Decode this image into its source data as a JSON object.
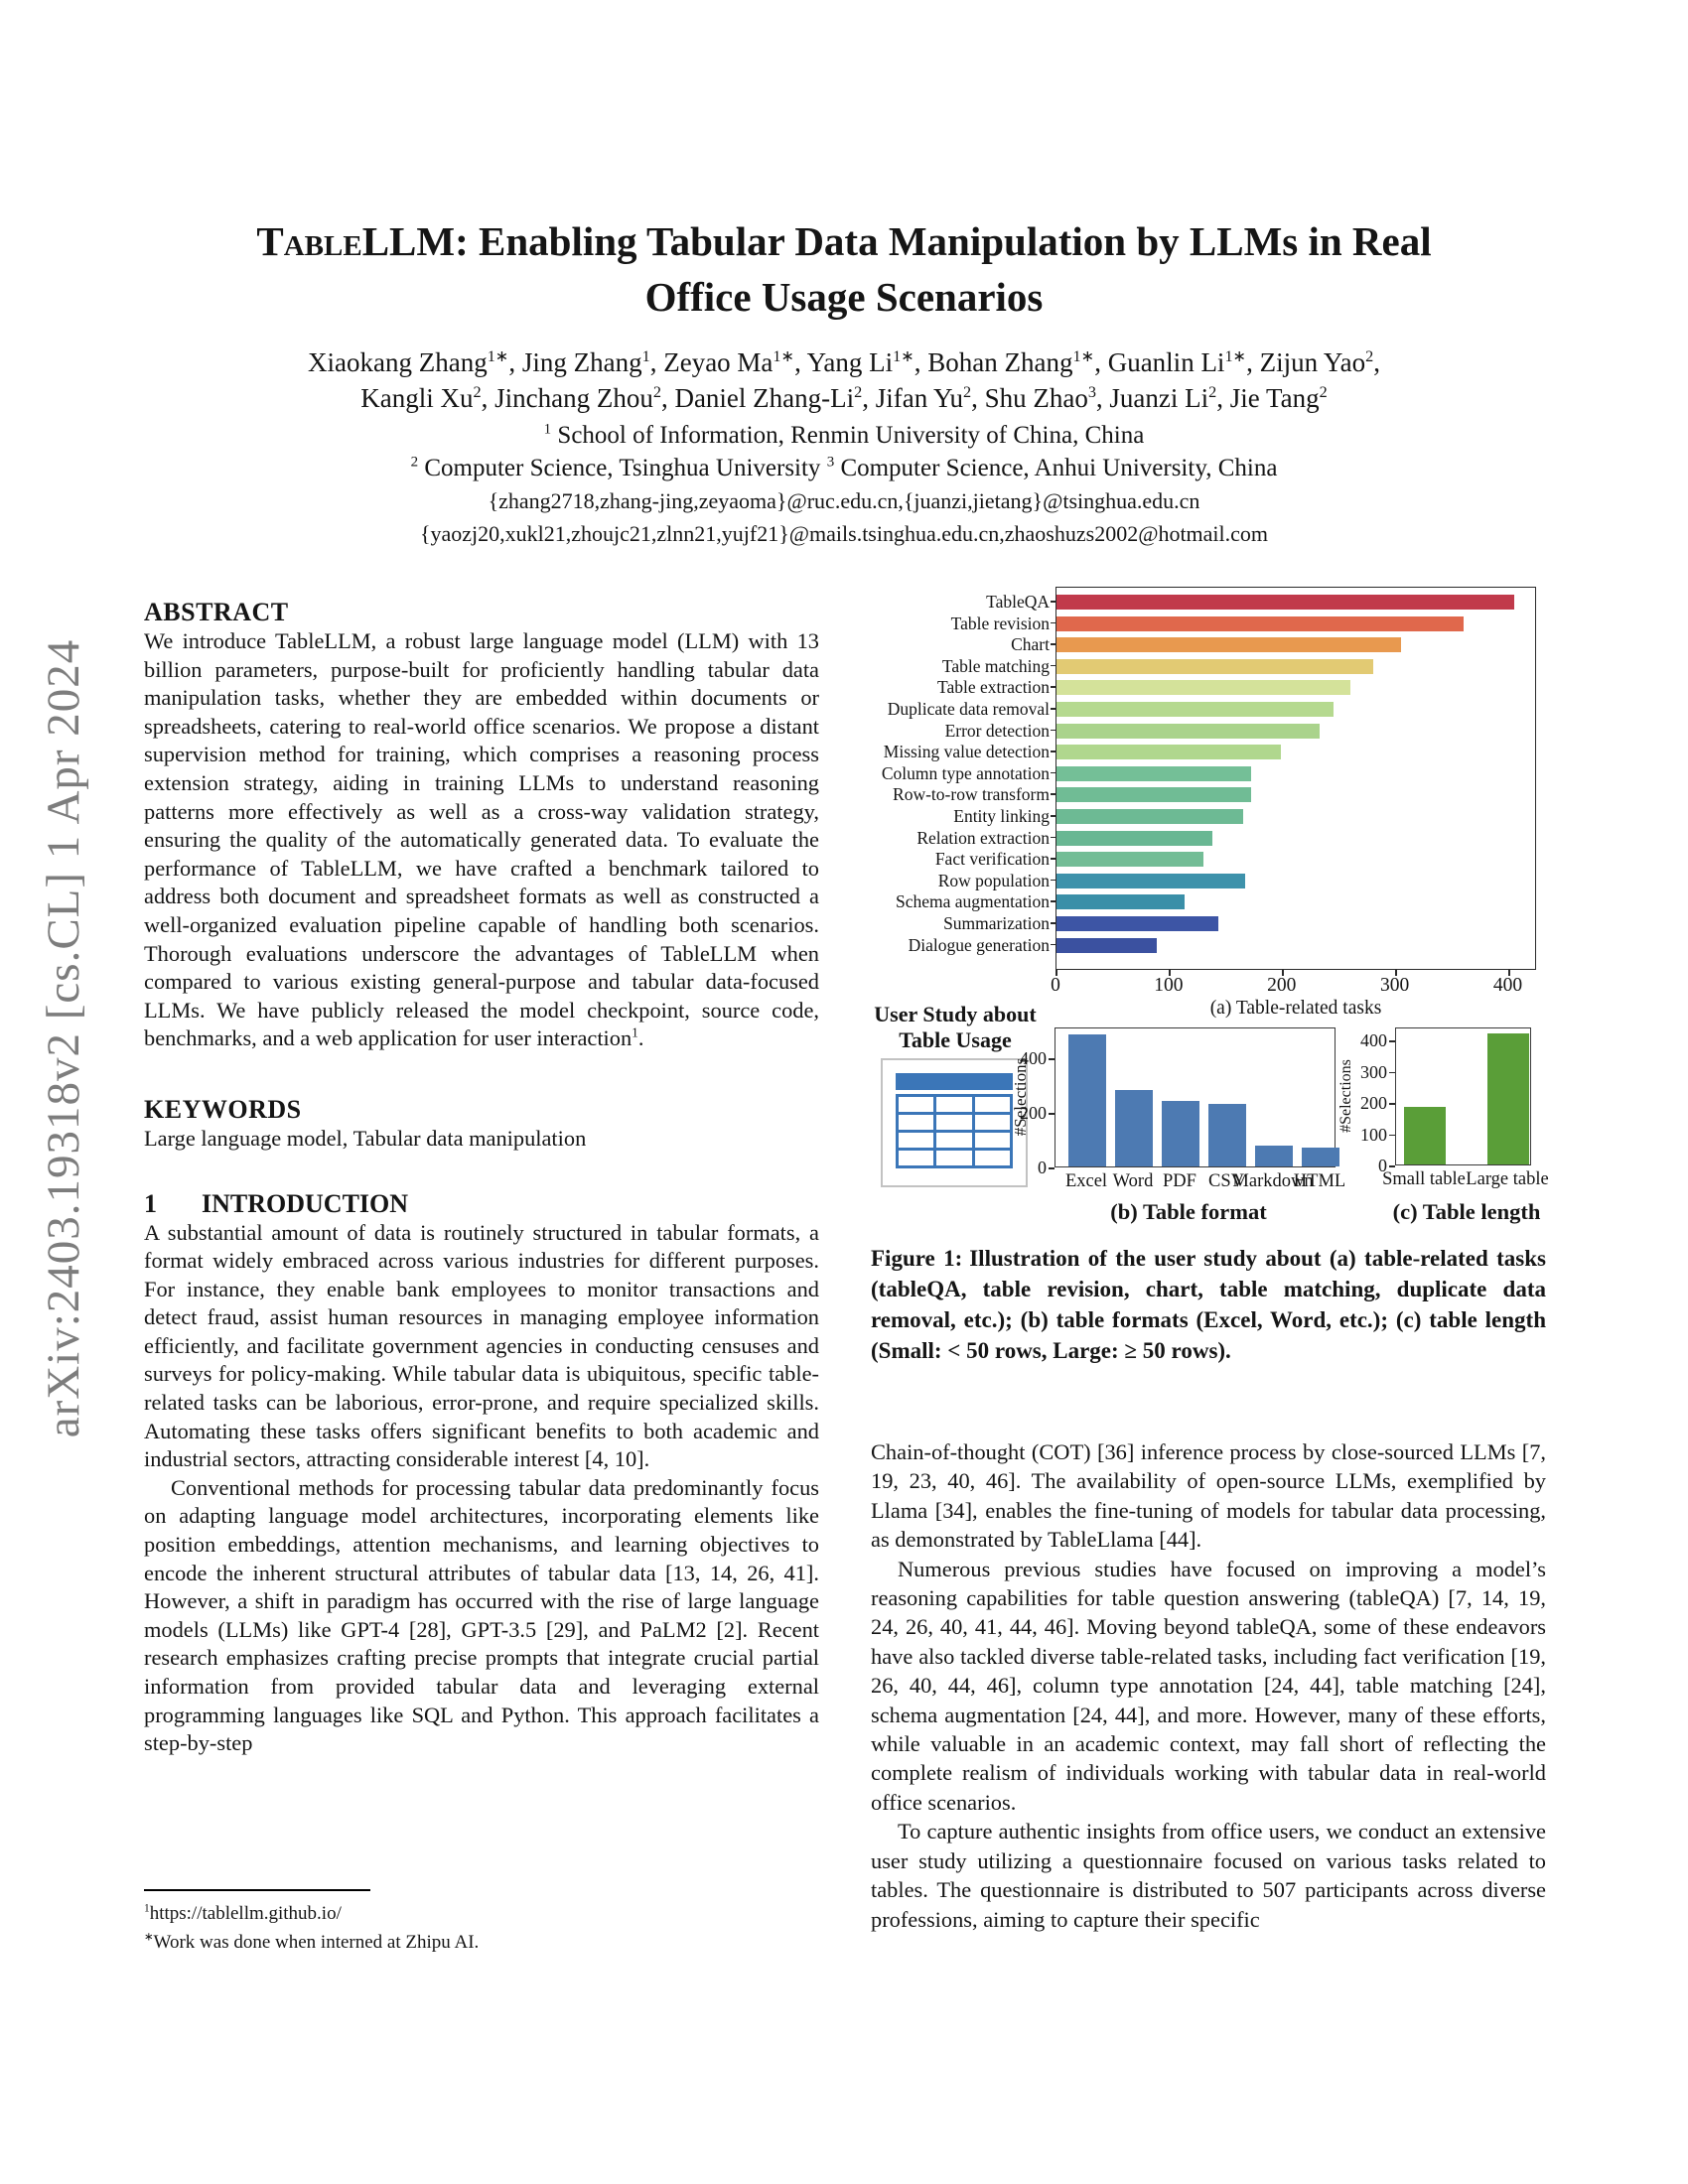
{
  "watermark": {
    "text": "arXiv:2403.19318v2  [cs.CL]  1 Apr 2024"
  },
  "header": {
    "title": {
      "sc": "Table",
      "rest": "LLM: Enabling Tabular Data Manipulation by LLMs in Real",
      "line2": "Office Usage Scenarios"
    },
    "author_lines": [
      {
        "authors": [
          {
            "name": "Xiaokang Zhang",
            "sup": "1∗"
          },
          {
            "name": "Jing Zhang",
            "sup": "1"
          },
          {
            "name": "Zeyao Ma",
            "sup": "1∗"
          },
          {
            "name": "Yang Li",
            "sup": "1∗"
          },
          {
            "name": "Bohan Zhang",
            "sup": "1∗"
          },
          {
            "name": "Guanlin Li",
            "sup": "1∗"
          },
          {
            "name": "Zijun Yao",
            "sup": "2"
          }
        ],
        "suffix": ","
      },
      {
        "authors": [
          {
            "name": "Kangli Xu",
            "sup": "2"
          },
          {
            "name": "Jinchang Zhou",
            "sup": "2"
          },
          {
            "name": "Daniel Zhang-Li",
            "sup": "2"
          },
          {
            "name": "Jifan Yu",
            "sup": "2"
          },
          {
            "name": "Shu Zhao",
            "sup": "3"
          },
          {
            "name": "Juanzi Li",
            "sup": "2"
          },
          {
            "name": "Jie Tang",
            "sup": "2"
          }
        ],
        "suffix": ""
      }
    ],
    "affiliations": [
      {
        "parts": [
          {
            "sup": "1",
            "text": " School of Information, Renmin University of China, China"
          }
        ]
      },
      {
        "parts": [
          {
            "sup": "2",
            "text": " Computer Science, Tsinghua University "
          },
          {
            "sup": "3",
            "text": " Computer Science, Anhui University, China"
          }
        ]
      }
    ],
    "emails": [
      "{zhang2718,zhang-jing,zeyaoma}@ruc.edu.cn,{juanzi,jietang}@tsinghua.edu.cn",
      "{yaozj20,xukl21,zhoujc21,zlnn21,yujf21}@mails.tsinghua.edu.cn,zhaoshuzs2002@hotmail.com"
    ]
  },
  "abstract": {
    "heading": "ABSTRACT",
    "text": "We introduce TableLLM, a robust large language model (LLM) with 13 billion parameters, purpose-built for proficiently handling tabular data manipulation tasks, whether they are embedded within documents or spreadsheets, catering to real-world office scenarios. We propose a distant supervision method for training, which comprises a reasoning process extension strategy, aiding in training LLMs to understand reasoning patterns more effectively as well as a cross-way validation strategy, ensuring the quality of the automatically generated data. To evaluate the performance of TableLLM, we have crafted a benchmark tailored to address both document and spreadsheet formats as well as constructed a well-organized evaluation pipeline capable of handling both scenarios. Thorough evaluations underscore the advantages of TableLLM when compared to various existing general-purpose and tabular data-focused LLMs. We have publicly released the model checkpoint, source code, benchmarks, and a web application for user interaction",
    "sup": "1",
    "tail": "."
  },
  "keywords": {
    "heading": "KEYWORDS",
    "text": "Large language model, Tabular data manipulation"
  },
  "introduction": {
    "number": "1",
    "heading": "INTRODUCTION",
    "paragraphs": [
      "A substantial amount of data is routinely structured in tabular formats, a format widely embraced across various industries for different purposes. For instance, they enable bank employees to monitor transactions and detect fraud, assist human resources in managing employee information efficiently, and facilitate government agencies in conducting censuses and surveys for policy-making. While tabular data is ubiquitous, specific table-related tasks can be laborious, error-prone, and require specialized skills. Automating these tasks offers significant benefits to both academic and industrial sectors, attracting considerable interest [4, 10].",
      "Conventional methods for processing tabular data predominantly focus on adapting language model architectures, incorporating elements like position embeddings, attention mechanisms, and learning objectives to encode the inherent structural attributes of tabular data [13, 14, 26, 41]. However, a shift in paradigm has occurred with the rise of large language models (LLMs) like GPT-4 [28], GPT-3.5 [29], and PaLM2 [2]. Recent research emphasizes crafting precise prompts that integrate crucial partial information from provided tabular data and leveraging external programming languages like SQL and Python. This approach facilitates a step-by-step"
    ]
  },
  "footnotes": {
    "items": [
      {
        "marker": "1",
        "text": "https://tablellm.github.io/",
        "interactable": true
      },
      {
        "marker": "∗",
        "text": "Work was done when interned at Zhipu AI.",
        "interactable": false
      }
    ]
  },
  "figure": {
    "user_study": {
      "line1": "User Study about",
      "line2": "Table Usage"
    },
    "caption": {
      "label": "Figure 1:",
      "text": "Illustration of the user study about (a) table-related tasks (tableQA, table revision, chart, table matching, duplicate data removal, etc.); (b) table formats (Excel, Word, etc.); (c) table length (Small: < 50 rows, Large: ≥ 50 rows)."
    }
  },
  "chart_data": [
    {
      "type": "bar",
      "orientation": "horizontal",
      "title": "(a) Table-related tasks",
      "categories": [
        "TableQA",
        "Table revision",
        "Chart",
        "Table matching",
        "Table extraction",
        "Duplicate data removal",
        "Error detection",
        "Missing value detection",
        "Column type annotation",
        "Row-to-row transform",
        "Entity linking",
        "Relation extraction",
        "Fact verification",
        "Row population",
        "Schema augmentation",
        "Summarization",
        "Dialogue generation"
      ],
      "values": [
        405,
        360,
        305,
        280,
        260,
        245,
        233,
        198,
        172,
        172,
        165,
        138,
        130,
        167,
        113,
        143,
        89
      ],
      "colors": [
        "#c13a4b",
        "#e0684c",
        "#e8994f",
        "#e2ca73",
        "#d4e29a",
        "#b5d98f",
        "#aad38c",
        "#b0d78e",
        "#74bf97",
        "#70bc95",
        "#6dba94",
        "#69b793",
        "#73bd96",
        "#3e92ab",
        "#3a8fa8",
        "#3d55a5",
        "#3b51a0"
      ],
      "xlim": [
        0,
        425
      ],
      "xticks": [
        0,
        100,
        200,
        300,
        400
      ],
      "grid": false,
      "legend": "none"
    },
    {
      "type": "bar",
      "orientation": "vertical",
      "title": "(b) Table format",
      "ylabel": "#Selections",
      "categories": [
        "Excel",
        "Word",
        "PDF",
        "CSV",
        "Markdown",
        "HTML"
      ],
      "values": [
        485,
        280,
        240,
        230,
        75,
        70
      ],
      "bar_color": "#4d7ab2",
      "ylim": [
        0,
        510
      ],
      "yticks": [
        0,
        200,
        400
      ],
      "grid": false,
      "legend": "none"
    },
    {
      "type": "bar",
      "orientation": "vertical",
      "title": "(c) Table length",
      "ylabel": "#Selections",
      "categories": [
        "Small table",
        "Large table"
      ],
      "values": [
        185,
        420
      ],
      "bar_color": "#5a9e38",
      "ylim": [
        0,
        435
      ],
      "yticks": [
        0,
        100,
        200,
        300,
        400
      ],
      "grid": false,
      "legend": "none"
    }
  ],
  "body": {
    "paragraphs": [
      "Chain-of-thought (COT) [36] inference process by close-sourced LLMs [7, 19, 23, 40, 46]. The availability of open-source LLMs, exemplified by Llama [34], enables the fine-tuning of models for tabular data processing, as demonstrated by TableLlama [44].",
      "Numerous previous studies have focused on improving a model’s reasoning capabilities for table question answering (tableQA) [7, 14, 19, 24, 26, 40, 41, 44, 46]. Moving beyond tableQA, some of these endeavors have also tackled diverse table-related tasks, including fact verification [19, 26, 40, 44, 46], column type annotation [24, 44], table matching [24], schema augmentation [24, 44], and more. However, many of these efforts, while valuable in an academic context, may fall short of reflecting the complete realism of individuals working with tabular data in real-world office scenarios.",
      "To capture authentic insights from office users, we conduct an extensive user study utilizing a questionnaire focused on various tasks related to tables. The questionnaire is distributed to 507 participants across diverse professions, aiming to capture their specific"
    ]
  }
}
